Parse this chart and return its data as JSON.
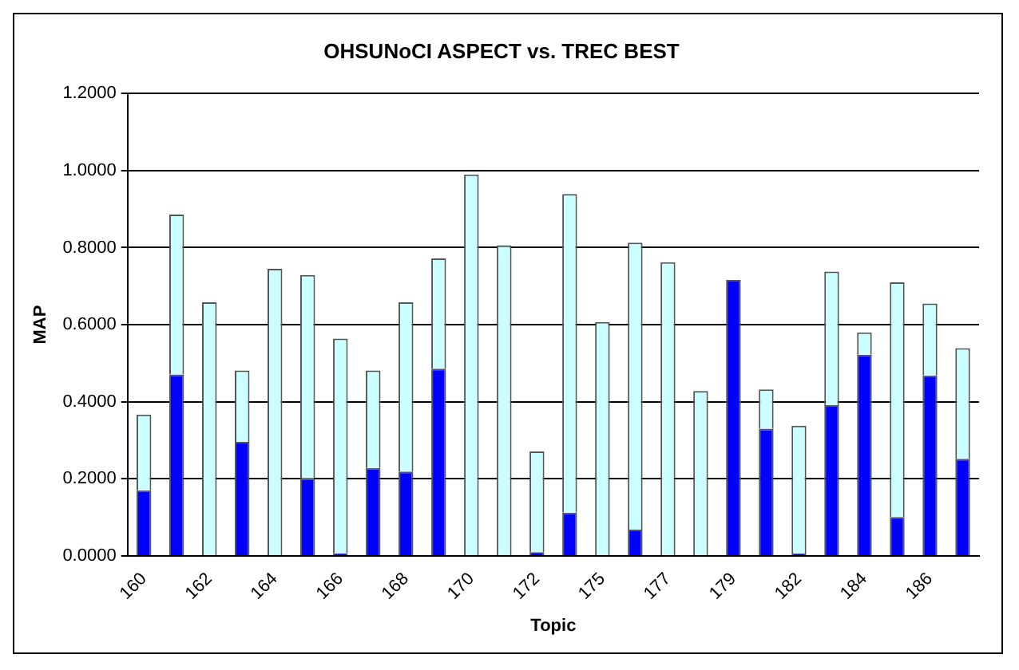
{
  "chart_data": {
    "type": "bar",
    "title": "OHSUNoCI ASPECT vs. TREC BEST",
    "xlabel": "Topic",
    "ylabel": "MAP",
    "categories": [
      "160",
      null,
      "162",
      null,
      "164",
      null,
      "166",
      null,
      "168",
      null,
      "170",
      null,
      "172",
      null,
      "175",
      null,
      "177",
      null,
      "179",
      null,
      "182",
      null,
      "184",
      null,
      "186",
      null
    ],
    "stacked": true,
    "series": [
      {
        "color": "#0000ff",
        "values": [
          0.17,
          0.471,
          null,
          0.296,
          0,
          0.201,
          0.007,
          0.228,
          0.219,
          0.486,
          0,
          0,
          0.01,
          0.112,
          0,
          0.068,
          0,
          0,
          0.716,
          0.33,
          0.006,
          0.391,
          0.522,
          0.101,
          0.468,
          0.252
        ]
      },
      {
        "color": "#ccffff",
        "values": [
          0.197,
          0.415,
          0.658,
          0.185,
          0.745,
          0.528,
          0.557,
          0.253,
          0.439,
          0.286,
          0.99,
          0.806,
          0.261,
          0.827,
          0.607,
          0.745,
          0.762,
          0.428,
          0,
          0.102,
          0.332,
          0.347,
          0.058,
          0.609,
          0.187,
          0.287
        ]
      }
    ],
    "ylim": [
      0,
      1.2
    ],
    "yticks": [
      {
        "value": 0,
        "label": "0.0000"
      },
      {
        "value": 0.2,
        "label": "0.2000"
      },
      {
        "value": 0.4,
        "label": "0.4000"
      },
      {
        "value": 0.6,
        "label": "0.6000"
      },
      {
        "value": 0.8,
        "label": "0.8000"
      },
      {
        "value": 1,
        "label": "1.0000"
      },
      {
        "value": 1.2,
        "label": "1.2000"
      }
    ],
    "grid": "y",
    "legend": false
  }
}
